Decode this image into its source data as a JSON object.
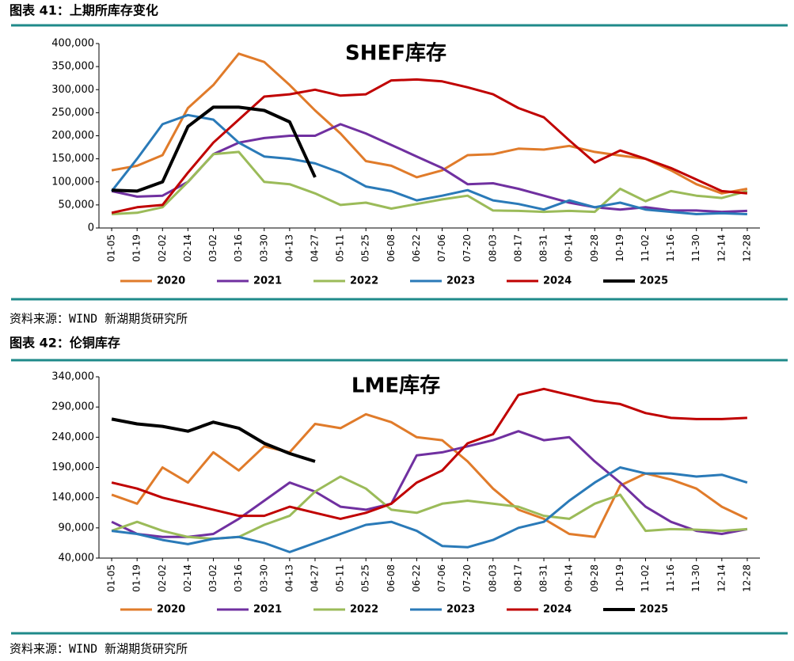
{
  "chart_data": [
    {
      "type": "line",
      "figure_label": "图表 41：上期所库存变化",
      "title": "SHEF库存",
      "source": "资料来源：WIND 新湖期货研究所",
      "categories": [
        "01-05",
        "01-19",
        "02-02",
        "02-14",
        "03-02",
        "03-16",
        "03-30",
        "04-13",
        "04-27",
        "05-11",
        "05-25",
        "06-08",
        "06-22",
        "07-06",
        "07-20",
        "08-03",
        "08-17",
        "08-31",
        "09-14",
        "09-28",
        "10-19",
        "11-02",
        "11-16",
        "11-30",
        "12-14",
        "12-28"
      ],
      "ylim": [
        0,
        400000
      ],
      "yticks": [
        0,
        {
          "value": 50000,
          "label": "50,000"
        },
        {
          "value": 100000,
          "label": "100,000"
        },
        {
          "value": 150000,
          "label": "150,000"
        },
        {
          "value": 200000,
          "label": "200,000"
        },
        {
          "value": 250000,
          "label": "250,000"
        },
        {
          "value": 300000,
          "label": "300,000"
        },
        {
          "value": 350000,
          "label": "350,000"
        },
        {
          "value": 400000,
          "label": "400,000"
        }
      ],
      "series": [
        {
          "name": "2020",
          "color": "#e07b2a",
          "values": [
            125000,
            135000,
            158000,
            260000,
            310000,
            378000,
            360000,
            310000,
            255000,
            205000,
            145000,
            135000,
            110000,
            125000,
            158000,
            160000,
            172000,
            170000,
            178000,
            165000,
            157000,
            150000,
            125000,
            95000,
            75000,
            85000
          ]
        },
        {
          "name": "2021",
          "color": "#7030a0",
          "values": [
            80000,
            68000,
            70000,
            100000,
            160000,
            185000,
            195000,
            200000,
            200000,
            225000,
            205000,
            180000,
            155000,
            130000,
            95000,
            97000,
            85000,
            70000,
            55000,
            45000,
            40000,
            45000,
            38000,
            38000,
            35000,
            37000
          ]
        },
        {
          "name": "2022",
          "color": "#9bbb59",
          "values": [
            30000,
            33000,
            45000,
            100000,
            160000,
            165000,
            100000,
            95000,
            75000,
            50000,
            55000,
            42000,
            52000,
            62000,
            70000,
            38000,
            37000,
            35000,
            37000,
            35000,
            85000,
            58000,
            80000,
            70000,
            65000,
            80000
          ]
        },
        {
          "name": "2023",
          "color": "#2a7ab8",
          "values": [
            80000,
            150000,
            225000,
            245000,
            235000,
            185000,
            155000,
            150000,
            140000,
            120000,
            90000,
            80000,
            60000,
            70000,
            82000,
            60000,
            52000,
            40000,
            60000,
            45000,
            55000,
            40000,
            35000,
            30000,
            32000,
            30000
          ]
        },
        {
          "name": "2024",
          "color": "#c00000",
          "values": [
            33000,
            45000,
            50000,
            120000,
            185000,
            235000,
            285000,
            290000,
            300000,
            287000,
            290000,
            320000,
            322000,
            318000,
            305000,
            290000,
            260000,
            240000,
            190000,
            142000,
            168000,
            150000,
            130000,
            105000,
            80000,
            75000
          ]
        },
        {
          "name": "2025",
          "color": "#000000",
          "values": [
            82000,
            80000,
            100000,
            220000,
            262000,
            262000,
            255000,
            230000,
            110000,
            null,
            null,
            null,
            null,
            null,
            null,
            null,
            null,
            null,
            null,
            null,
            null,
            null,
            null,
            null,
            null,
            null
          ]
        }
      ]
    },
    {
      "type": "line",
      "figure_label": "图表 42：伦铜库存",
      "title": "LME库存",
      "source": "资料来源：WIND 新湖期货研究所",
      "categories": [
        "01-05",
        "01-19",
        "02-02",
        "02-14",
        "03-02",
        "03-16",
        "03-30",
        "04-13",
        "04-27",
        "05-11",
        "05-25",
        "06-08",
        "06-22",
        "07-06",
        "07-20",
        "08-03",
        "08-17",
        "08-31",
        "09-14",
        "09-28",
        "10-19",
        "11-02",
        "11-16",
        "11-30",
        "12-14",
        "12-28"
      ],
      "ylim": [
        40000,
        340000
      ],
      "yticks": [
        {
          "value": 40000,
          "label": "40,000"
        },
        {
          "value": 90000,
          "label": "90,000"
        },
        {
          "value": 140000,
          "label": "140,000"
        },
        {
          "value": 190000,
          "label": "190,000"
        },
        {
          "value": 240000,
          "label": "240,000"
        },
        {
          "value": 290000,
          "label": "290,000"
        },
        {
          "value": 340000,
          "label": "340,000"
        }
      ],
      "series": [
        {
          "name": "2020",
          "color": "#e07b2a",
          "values": [
            145000,
            130000,
            190000,
            165000,
            215000,
            185000,
            225000,
            215000,
            262000,
            255000,
            278000,
            265000,
            240000,
            235000,
            200000,
            155000,
            120000,
            105000,
            80000,
            75000,
            160000,
            180000,
            170000,
            155000,
            125000,
            105000
          ]
        },
        {
          "name": "2021",
          "color": "#7030a0",
          "values": [
            100000,
            80000,
            75000,
            75000,
            80000,
            105000,
            135000,
            165000,
            150000,
            125000,
            120000,
            130000,
            210000,
            215000,
            225000,
            235000,
            250000,
            235000,
            240000,
            200000,
            165000,
            125000,
            100000,
            85000,
            80000,
            88000
          ]
        },
        {
          "name": "2022",
          "color": "#9bbb59",
          "values": [
            85000,
            100000,
            85000,
            75000,
            72000,
            75000,
            95000,
            110000,
            150000,
            175000,
            155000,
            120000,
            115000,
            130000,
            135000,
            130000,
            125000,
            110000,
            105000,
            130000,
            145000,
            85000,
            88000,
            87000,
            85000,
            88000
          ]
        },
        {
          "name": "2023",
          "color": "#2a7ab8",
          "values": [
            85000,
            80000,
            70000,
            63000,
            72000,
            75000,
            65000,
            50000,
            65000,
            80000,
            95000,
            100000,
            85000,
            60000,
            58000,
            70000,
            90000,
            100000,
            135000,
            165000,
            190000,
            180000,
            180000,
            175000,
            178000,
            165000
          ]
        },
        {
          "name": "2024",
          "color": "#c00000",
          "values": [
            165000,
            155000,
            140000,
            130000,
            120000,
            110000,
            110000,
            125000,
            115000,
            105000,
            115000,
            130000,
            165000,
            185000,
            230000,
            245000,
            310000,
            320000,
            310000,
            300000,
            295000,
            280000,
            272000,
            270000,
            270000,
            272000
          ]
        },
        {
          "name": "2025",
          "color": "#000000",
          "values": [
            270000,
            262000,
            258000,
            250000,
            265000,
            255000,
            230000,
            213000,
            200000,
            null,
            null,
            null,
            null,
            null,
            null,
            null,
            null,
            null,
            null,
            null,
            null,
            null,
            null,
            null,
            null,
            null
          ]
        }
      ]
    }
  ]
}
